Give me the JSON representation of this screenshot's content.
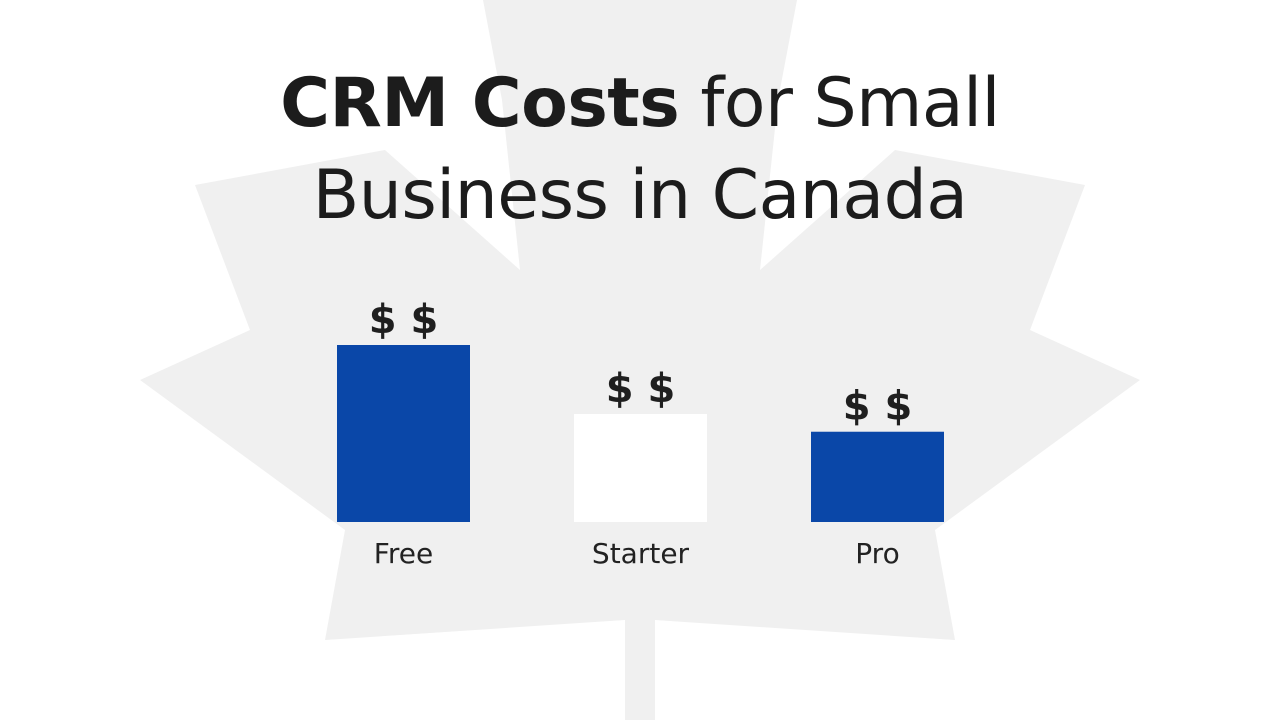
{
  "chart_data": {
    "type": "bar",
    "title_bold": "CRM Costs",
    "title_rest_line1": "for Small",
    "title_line2": "Business in Canada",
    "xlabel": "",
    "ylabel": "",
    "categories": [
      "Free",
      "Starter",
      "Pro"
    ],
    "values": [
      100,
      61,
      51
    ],
    "value_unit": "relative bar height (% of tallest bar)",
    "data_labels": [
      "$ $",
      "$ $",
      "$ $"
    ],
    "bar_colors": [
      "#0a47a8",
      "#ffffff",
      "#0a47a8"
    ],
    "ylim": [
      0,
      100
    ],
    "grid": false,
    "legend": "none"
  },
  "background": {
    "base_color": "#ffffff",
    "leaf_color": "#f0f0f0",
    "leaf_icon": "maple-leaf-icon"
  }
}
